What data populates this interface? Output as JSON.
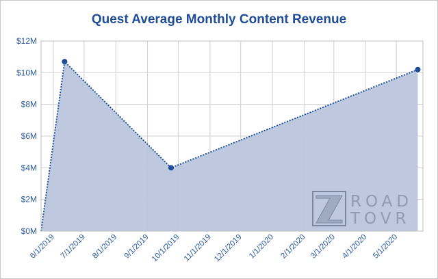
{
  "chart_data": {
    "type": "area",
    "title": "Quest Average Monthly Content Revenue",
    "xlabel": "",
    "ylabel": "",
    "x": [
      "2019-05-20",
      "2019-06-12",
      "2019-09-24",
      "2020-05-22"
    ],
    "y": [
      0,
      10.7,
      4.0,
      10.2
    ],
    "marker_x": [
      "2019-06-12",
      "2019-09-24",
      "2020-05-22"
    ],
    "marker_y": [
      10.7,
      4.0,
      10.2
    ],
    "xlim": [
      "2019-05-20",
      "2020-05-27"
    ],
    "ylim": [
      0,
      12
    ],
    "x_ticks": [
      "6/1/2019",
      "7/1/2019",
      "8/1/2019",
      "9/1/2019",
      "10/1/2019",
      "11/1/2019",
      "12/1/2019",
      "1/1/2020",
      "2/1/2020",
      "3/1/2020",
      "4/1/2020",
      "5/1/2020"
    ],
    "x_tick_dates": [
      "2019-06-01",
      "2019-07-01",
      "2019-08-01",
      "2019-09-01",
      "2019-10-01",
      "2019-11-01",
      "2019-12-01",
      "2020-01-01",
      "2020-02-01",
      "2020-03-01",
      "2020-04-01",
      "2020-05-01"
    ],
    "y_ticks": [
      0,
      2,
      4,
      6,
      8,
      10,
      12
    ],
    "y_tick_labels": [
      "$0M",
      "$2M",
      "$4M",
      "$6M",
      "$8M",
      "$10M",
      "$12M"
    ],
    "grid": true,
    "legend": "none",
    "colors": {
      "line": "#1f4e96",
      "fill": "#bac6de",
      "grid": "#d0d0d0",
      "text": "#2d5aa0"
    }
  },
  "watermark": {
    "line1": "ROAD",
    "line2": "TOVR"
  }
}
